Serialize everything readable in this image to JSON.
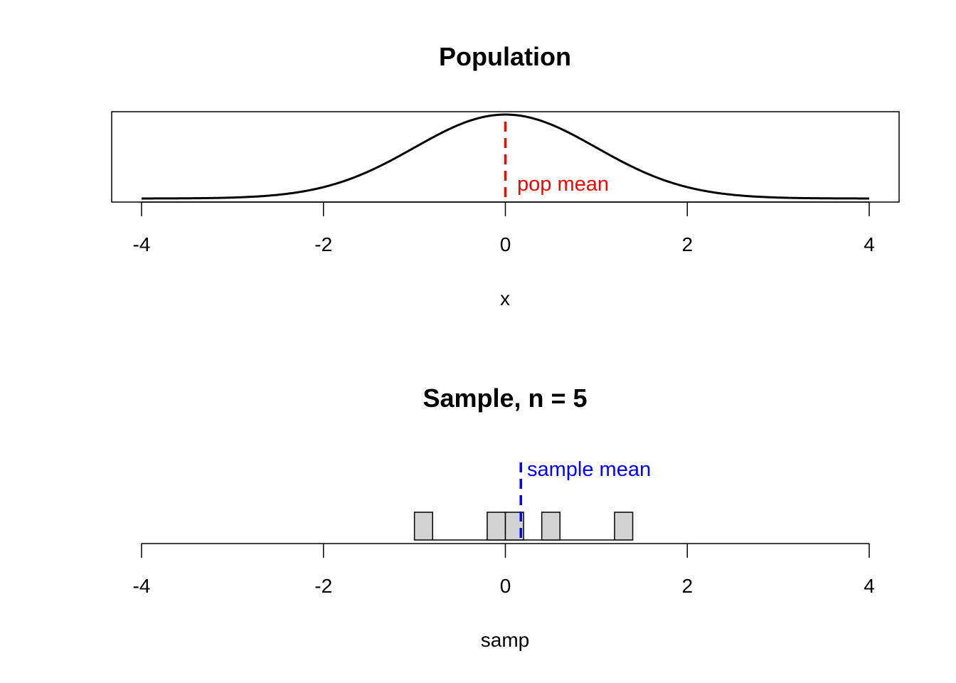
{
  "chart_data": [
    {
      "type": "line",
      "title": "Population",
      "xlabel": "x",
      "ylabel": "",
      "xlim": [
        -4,
        4
      ],
      "x_ticks": [
        -4,
        -2,
        0,
        2,
        4
      ],
      "x_tick_labels": [
        "-4",
        "-2",
        "0",
        "2",
        "4"
      ],
      "series": [
        {
          "distribution": "standard normal density",
          "mean": 0,
          "sd": 1,
          "color": "#000000"
        }
      ],
      "reference_line": {
        "x": 0,
        "style": "dashed",
        "color": "#ff0000",
        "label": "pop mean"
      },
      "box": true,
      "y_axis_shown": false
    },
    {
      "type": "histogram",
      "title": "Sample, n = 5",
      "xlabel": "samp",
      "ylabel": "",
      "xlim": [
        -4,
        4
      ],
      "x_ticks": [
        -4,
        -2,
        0,
        2,
        4
      ],
      "x_tick_labels": [
        "-4",
        "-2",
        "0",
        "2",
        "4"
      ],
      "bin_width": 0.2,
      "bins": [
        {
          "from": -1.0,
          "to": -0.8,
          "count": 1
        },
        {
          "from": -0.2,
          "to": 0.0,
          "count": 1
        },
        {
          "from": 0.0,
          "to": 0.2,
          "count": 1
        },
        {
          "from": 0.4,
          "to": 0.6,
          "count": 1
        },
        {
          "from": 1.2,
          "to": 1.4,
          "count": 1
        }
      ],
      "range_line": [
        -0.8,
        1.2
      ],
      "bar_fill": "#d3d3d3",
      "reference_line": {
        "x": 0.17,
        "style": "dashed",
        "color": "#0000ff",
        "label": "sample mean"
      },
      "box": false,
      "y_axis_shown": false
    }
  ]
}
